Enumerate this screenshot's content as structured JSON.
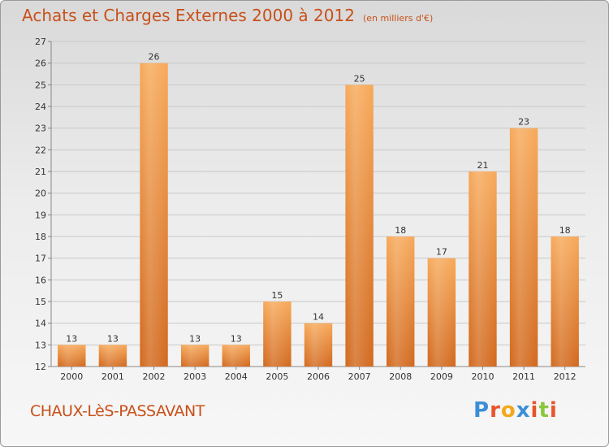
{
  "header": {
    "title": "Achats et Charges Externes 2000 à 2012",
    "subtitle": "(en milliers d'€)"
  },
  "footer": {
    "commune": "CHAUX-LèS-PASSAVANT",
    "logo_letters": [
      "P",
      "r",
      "o",
      "x",
      "i",
      "t",
      "i"
    ],
    "logo_colors": [
      "#3b8fd6",
      "#e8542a",
      "#f2a81d",
      "#3b8fd6",
      "#e8542a",
      "#8cc63f",
      "#e8542a"
    ]
  },
  "colors": {
    "bar_top": "#f7a95a",
    "bar_bottom": "#d2691e",
    "grid": "#c8c8c8",
    "axis_text": "#333333"
  },
  "chart_data": {
    "type": "bar",
    "title": "Achats et Charges Externes 2000 à 2012",
    "subtitle": "(en milliers d'€)",
    "xlabel": "",
    "ylabel": "",
    "categories": [
      "2000",
      "2001",
      "2002",
      "2003",
      "2004",
      "2005",
      "2006",
      "2007",
      "2008",
      "2009",
      "2010",
      "2011",
      "2012"
    ],
    "values": [
      13,
      13,
      26,
      13,
      13,
      15,
      14,
      25,
      18,
      17,
      21,
      23,
      18
    ],
    "ylim": [
      12,
      27
    ],
    "yticks": [
      12,
      13,
      14,
      15,
      16,
      17,
      18,
      19,
      20,
      21,
      22,
      23,
      24,
      25,
      26,
      27
    ],
    "grid": true,
    "legend": "none"
  }
}
